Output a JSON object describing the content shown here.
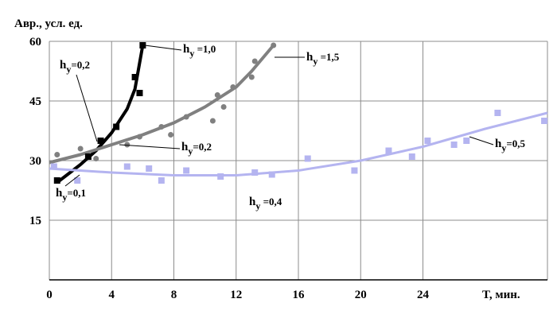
{
  "chart_data": {
    "type": "scatter",
    "ylabel": "Авр., усл. ед.",
    "xlabel": "T, мин.",
    "xlim": [
      0,
      32
    ],
    "ylim": [
      0,
      60
    ],
    "xticks": [
      0,
      4,
      8,
      12,
      16,
      20,
      24
    ],
    "yticks": [
      15,
      30,
      45,
      60
    ],
    "grid": true,
    "series": [
      {
        "color": "#000000",
        "marker": "square",
        "x": [
          0.5,
          2.5,
          3.3,
          4.3,
          5.5,
          5.8,
          6
        ],
        "values": [
          25,
          31,
          35,
          38.5,
          51,
          47,
          59
        ]
      },
      {
        "color": "#808080",
        "marker": "circle",
        "x": [
          0.5,
          2,
          3,
          5,
          5.8,
          7.2,
          7.8,
          8.8,
          10.5,
          10.8,
          11.2,
          11.8,
          13,
          13.2,
          14.4
        ],
        "values": [
          31.5,
          33,
          30.5,
          34,
          36,
          38.5,
          36.5,
          41,
          40,
          46.5,
          43.5,
          48.5,
          51,
          55,
          59
        ]
      },
      {
        "color": "#b4b4f0",
        "marker": "square",
        "x": [
          0.3,
          1.8,
          5,
          6.4,
          7.2,
          8.8,
          11,
          13.2,
          14.3,
          16.6,
          19.6,
          21.8,
          23.3,
          24.3,
          26,
          26.8,
          28.8,
          31.8
        ],
        "values": [
          28.5,
          25,
          28.5,
          28,
          25,
          27.5,
          26,
          27,
          26.5,
          30.5,
          27.5,
          32.5,
          31,
          35,
          34,
          35,
          42,
          40
        ]
      }
    ],
    "trend_lines": [
      {
        "color": "#000000",
        "width": 4,
        "x": [
          0.5,
          1,
          2,
          3,
          4,
          5,
          5.5,
          6
        ],
        "values": [
          24.5,
          26,
          29,
          32.5,
          37,
          43,
          48,
          59
        ]
      },
      {
        "color": "#808080",
        "width": 4,
        "x": [
          0,
          2,
          4,
          6,
          8,
          10,
          12,
          13,
          14.4
        ],
        "values": [
          29.5,
          31.5,
          34,
          36.5,
          39.5,
          43.5,
          48.5,
          52.5,
          59
        ]
      },
      {
        "color": "#b4b4f0",
        "width": 3,
        "x": [
          0,
          4,
          8,
          12,
          16,
          20,
          24,
          28,
          32
        ],
        "values": [
          28,
          27,
          26.3,
          26.3,
          27.5,
          30,
          33.5,
          38,
          42
        ]
      }
    ],
    "annotations": [
      {
        "h": "h",
        "sub": "y",
        "text": " =1,0"
      },
      {
        "h": "h",
        "sub": "y",
        "text": " =1,5"
      },
      {
        "h": "h",
        "sub": "y",
        "text": "=0,2"
      },
      {
        "h": "h",
        "sub": "y",
        "text": "=0,2"
      },
      {
        "h": "h",
        "sub": "y",
        "text": "=0,1"
      },
      {
        "h": "h",
        "sub": "y",
        "text": " =0,4"
      },
      {
        "h": "h",
        "sub": "y",
        "text": "=0,5"
      }
    ]
  }
}
